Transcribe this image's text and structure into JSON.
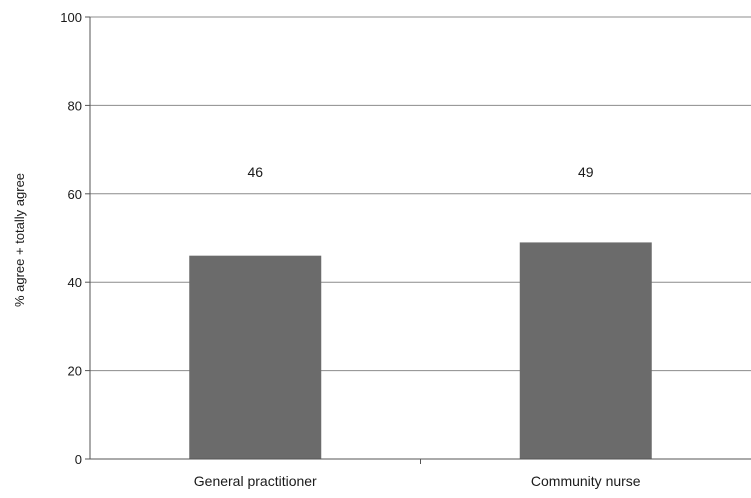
{
  "chart_data": {
    "type": "bar",
    "title": "",
    "xlabel": "",
    "ylabel": "% agree + totally agree",
    "categories": [
      "General practitioner",
      "Community nurse"
    ],
    "values": [
      46,
      49
    ],
    "data_labels": [
      "46",
      "49"
    ],
    "ylim": [
      0,
      100
    ],
    "yticks": [
      0,
      20,
      40,
      60,
      80,
      100
    ],
    "ytick_labels": [
      "0",
      "20",
      "40",
      "60",
      "80",
      "100"
    ],
    "grid": true,
    "legend": "none",
    "colors": {
      "bar": "#6b6b6b",
      "grid": "#8c8c8c",
      "axis": "#555555"
    }
  }
}
